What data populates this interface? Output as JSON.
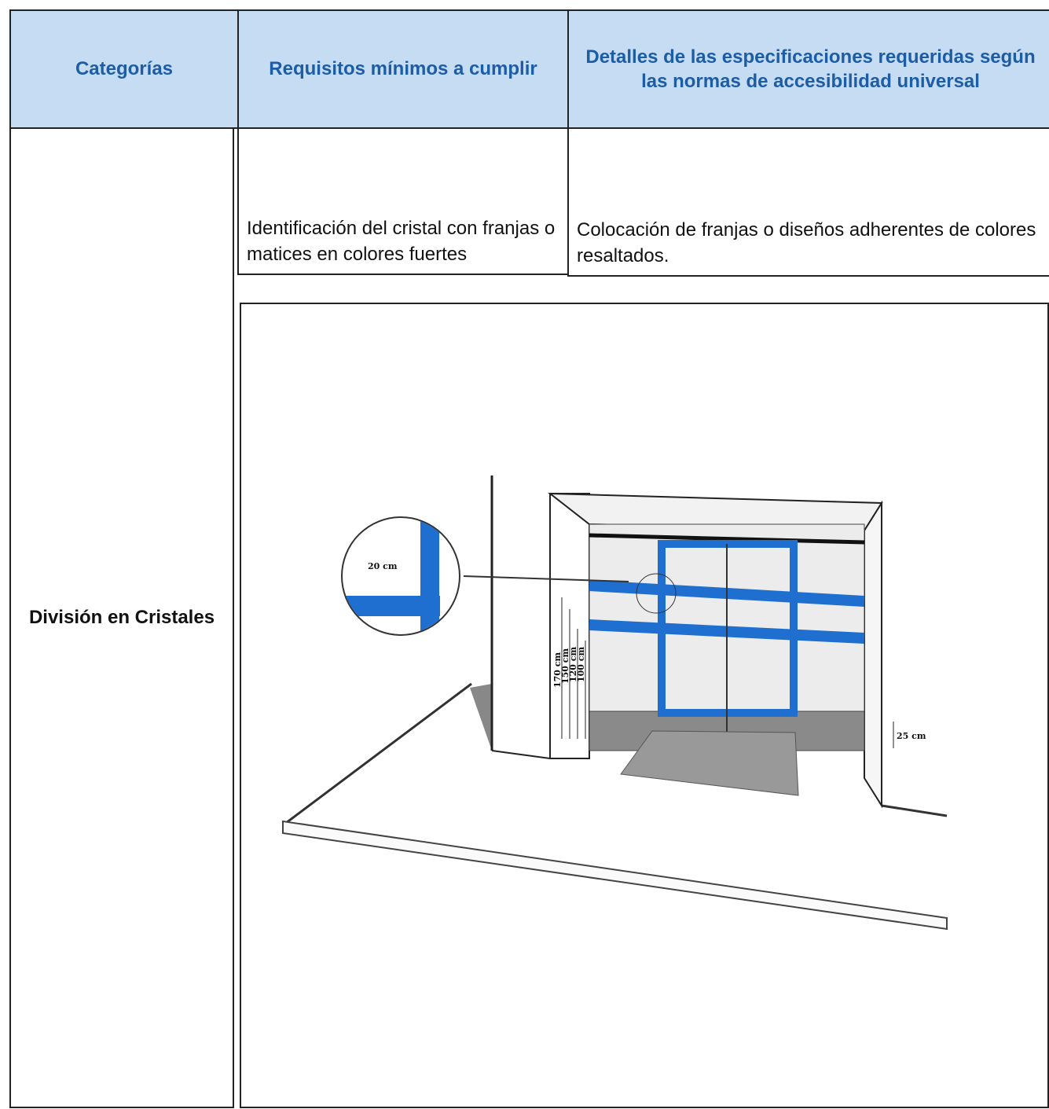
{
  "table": {
    "header": [
      "Categorías",
      "Requisitos mínimos a cumplir",
      "Detalles de las especificaciones requeridas según las normas de accesibilidad universal"
    ],
    "rows": [
      [
        "División en Cristales",
        "Identificación del cristal con franjas o matices  en colores fuertes",
        "Colocación de franjas o diseños adherentes de colores resaltados."
      ]
    ]
  },
  "figure": {
    "labels": [
      "20 cm",
      "170 cm",
      "150 cm",
      "120 cm",
      "100 cm",
      "25 cm"
    ]
  }
}
